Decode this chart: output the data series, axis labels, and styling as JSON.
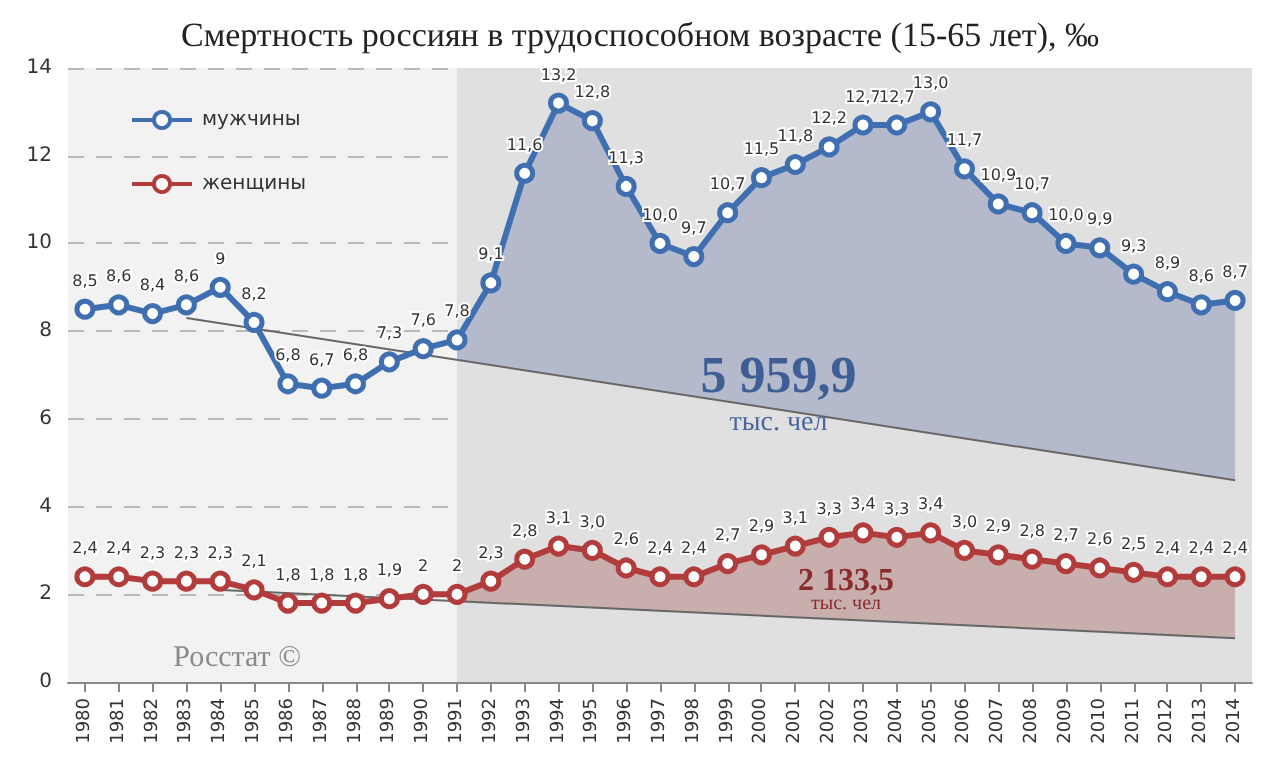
{
  "chart_data": {
    "type": "line",
    "title": "Смертность россиян в трудоспособном возрасте (15-65 лет), ‰",
    "categories": [
      "1980",
      "1981",
      "1982",
      "1983",
      "1984",
      "1985",
      "1986",
      "1987",
      "1988",
      "1989",
      "1990",
      "1991",
      "1992",
      "1993",
      "1994",
      "1995",
      "1996",
      "1997",
      "1998",
      "1999",
      "2000",
      "2001",
      "2002",
      "2003",
      "2004",
      "2005",
      "2006",
      "2007",
      "2008",
      "2009",
      "2010",
      "2011",
      "2012",
      "2013",
      "2014"
    ],
    "series": [
      {
        "name": "мужчины",
        "color": "#3f6fb0",
        "values": [
          8.5,
          8.6,
          8.4,
          8.6,
          9,
          8.2,
          6.8,
          6.7,
          6.8,
          7.3,
          7.6,
          7.8,
          9.1,
          11.6,
          13.2,
          12.8,
          11.3,
          10.0,
          9.7,
          10.7,
          11.5,
          11.8,
          12.2,
          12.7,
          12.7,
          13.0,
          11.7,
          10.9,
          10.7,
          10.0,
          9.9,
          9.3,
          8.9,
          8.6,
          8.7
        ],
        "value_labels": [
          "8,5",
          "8,6",
          "8,4",
          "8,6",
          "9",
          "8,2",
          "6,8",
          "6,7",
          "6,8",
          "7,3",
          "7,6",
          "7,8",
          "9,1",
          "11,6",
          "13,2",
          "12,8",
          "11,3",
          "10,0",
          "9,7",
          "10,7",
          "11,5",
          "11,8",
          "12,2",
          "12,7",
          "12,7",
          "13,0",
          "11,7",
          "10,9",
          "10,7",
          "10,0",
          "9,9",
          "9,3",
          "8,9",
          "8,6",
          "8,7"
        ]
      },
      {
        "name": "женщины",
        "color": "#b23b3b",
        "values": [
          2.4,
          2.4,
          2.3,
          2.3,
          2.3,
          2.1,
          1.8,
          1.8,
          1.8,
          1.9,
          2,
          2,
          2.3,
          2.8,
          3.1,
          3.0,
          2.6,
          2.4,
          2.4,
          2.7,
          2.9,
          3.1,
          3.3,
          3.4,
          3.3,
          3.4,
          3.0,
          2.9,
          2.8,
          2.7,
          2.6,
          2.5,
          2.4,
          2.4,
          2.4
        ],
        "value_labels": [
          "2,4",
          "2,4",
          "2,3",
          "2,3",
          "2,3",
          "2,1",
          "1,8",
          "1,8",
          "1,8",
          "1,9",
          "2",
          "2",
          "2,3",
          "2,8",
          "3,1",
          "3,0",
          "2,6",
          "2,4",
          "2,4",
          "2,7",
          "2,9",
          "3,1",
          "3,3",
          "3,4",
          "3,3",
          "3,4",
          "3,0",
          "2,9",
          "2,8",
          "2,7",
          "2,6",
          "2,5",
          "2,4",
          "2,4",
          "2,4"
        ]
      },
      {
        "type": "line",
        "color": "#666666",
        "marker": "none",
        "values": [
          null,
          null,
          null,
          8.3,
          null,
          null,
          null,
          null,
          null,
          null,
          null,
          null,
          null,
          null,
          null,
          null,
          null,
          null,
          null,
          null,
          null,
          null,
          null,
          null,
          null,
          null,
          null,
          null,
          null,
          null,
          null,
          null,
          null,
          null,
          4.6
        ]
      },
      {
        "type": "line",
        "color": "#666666",
        "marker": "none",
        "values": [
          null,
          null,
          null,
          null,
          2.1,
          null,
          null,
          null,
          null,
          null,
          null,
          null,
          null,
          null,
          null,
          null,
          null,
          null,
          null,
          null,
          null,
          null,
          null,
          null,
          null,
          null,
          null,
          null,
          null,
          null,
          null,
          null,
          null,
          null,
          1.0
        ]
      }
    ],
    "ylim": [
      0,
      14
    ],
    "yticks": [
      0,
      2,
      4,
      6,
      8,
      10,
      12,
      14
    ],
    "grid": "y",
    "legend": "top left",
    "marker": "circle",
    "bands": [
      {
        "axis": "x",
        "from": "1991",
        "to": "2014",
        "color": "#e0e0e0"
      }
    ],
    "annotations": [
      "5 959,9",
      "тыс. чел",
      "2 133,5",
      "тыс. чел",
      "Росстат ©"
    ]
  }
}
